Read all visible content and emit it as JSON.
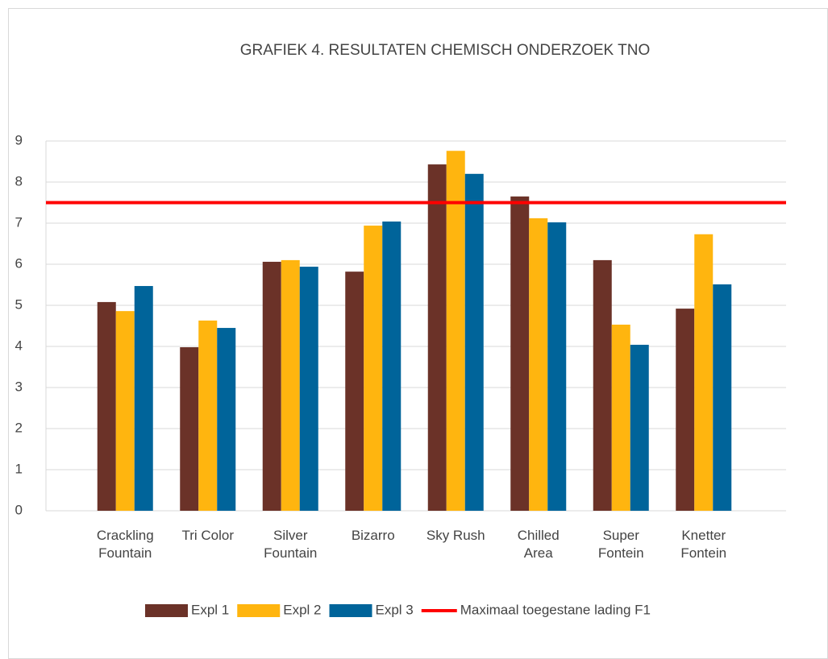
{
  "chart_data": {
    "type": "bar",
    "title": "GRAFIEK 4. RESULTATEN CHEMISCH ONDERZOEK TNO",
    "categories": [
      "Crackling Fountain",
      "Tri Color",
      "Silver Fountain",
      "Bizarro",
      "Sky Rush",
      "Chilled Area",
      "Super Fontein",
      "Knetter Fontein"
    ],
    "series": [
      {
        "name": "Expl 1",
        "color": "#6b3228",
        "values": [
          5.08,
          3.98,
          6.06,
          5.82,
          8.43,
          7.65,
          6.1,
          4.92
        ]
      },
      {
        "name": "Expl 2",
        "color": "#ffb50f",
        "values": [
          4.86,
          4.63,
          6.1,
          6.94,
          8.76,
          7.12,
          4.53,
          6.73
        ]
      },
      {
        "name": "Expl 3",
        "color": "#00649a",
        "values": [
          5.47,
          4.45,
          5.94,
          7.04,
          8.2,
          7.02,
          4.04,
          5.51
        ]
      },
      {
        "name": "Maximaal toegestane lading F1",
        "color": "#ff0000",
        "type": "line",
        "values": [
          7.5,
          7.5,
          7.5,
          7.5,
          7.5,
          7.5,
          7.5,
          7.5
        ]
      }
    ],
    "ylim": [
      0,
      9
    ],
    "yticks": [
      0,
      1,
      2,
      3,
      4,
      5,
      6,
      7,
      8,
      9
    ],
    "grid": true,
    "legend": "bottom"
  }
}
